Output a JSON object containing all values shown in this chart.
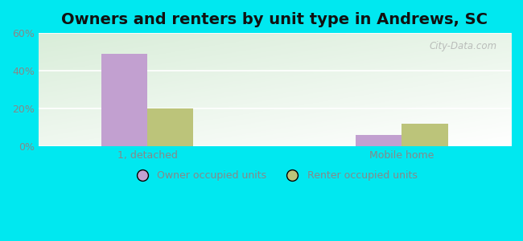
{
  "title": "Owners and renters by unit type in Andrews, SC",
  "categories": [
    "1, detached",
    "Mobile home"
  ],
  "owner_values": [
    49,
    6
  ],
  "renter_values": [
    20,
    12
  ],
  "owner_color": "#c2a0d0",
  "renter_color": "#bcc47a",
  "ylim": [
    0,
    60
  ],
  "yticks": [
    0,
    20,
    40,
    60
  ],
  "ytick_labels": [
    "0%",
    "20%",
    "40%",
    "60%"
  ],
  "bar_width": 0.38,
  "background_outer": "#00e8f0",
  "title_fontsize": 14,
  "legend_labels": [
    "Owner occupied units",
    "Renter occupied units"
  ],
  "watermark": "City-Data.com",
  "tick_color": "#888888",
  "grid_color": "#dddddd",
  "plot_bg_top": "#d8edd8",
  "plot_bg_bottom": "#f8fff8"
}
